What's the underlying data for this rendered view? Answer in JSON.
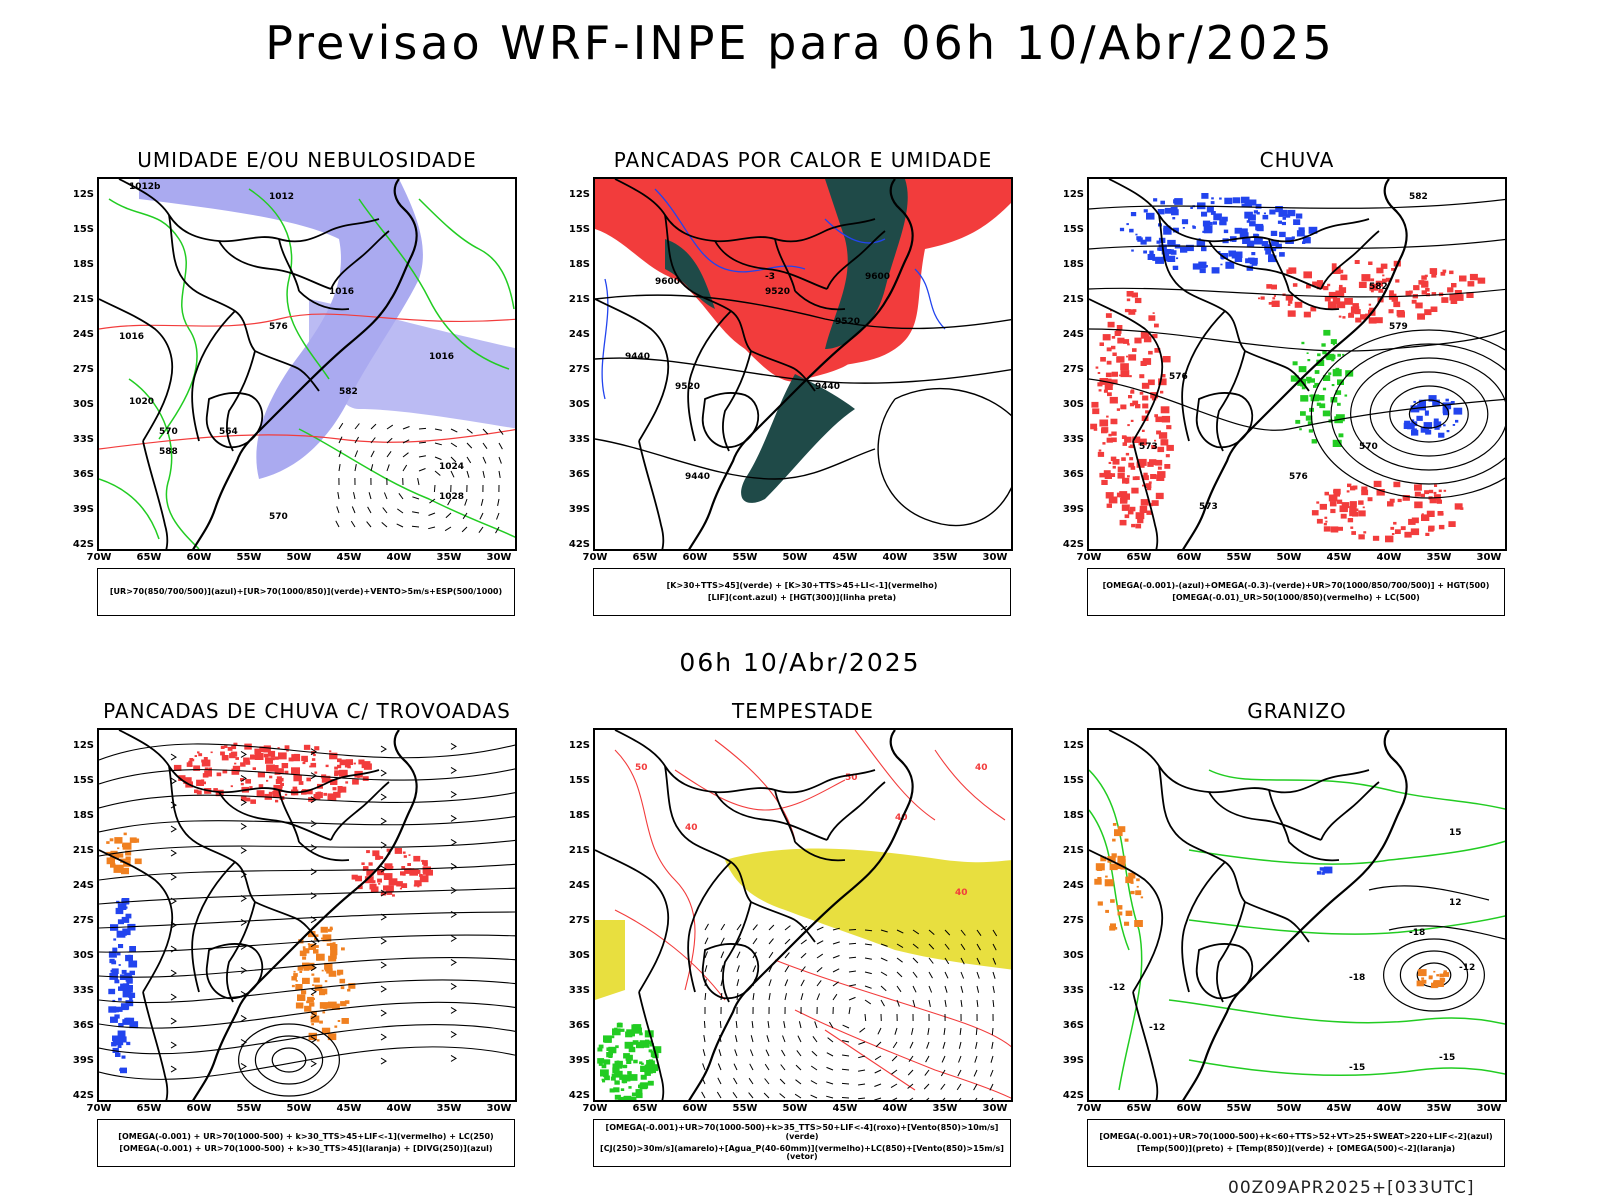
{
  "title": "Previsao WRF-INPE  para 06h 10/Abr/2025",
  "mid_title": "06h 10/Abr/2025",
  "footer": "00Z09APR2025+[033UTC]",
  "lat_labels": [
    "12S",
    "15S",
    "18S",
    "21S",
    "24S",
    "27S",
    "30S",
    "33S",
    "36S",
    "39S",
    "42S"
  ],
  "lon_labels": [
    "70W",
    "65W",
    "60W",
    "55W",
    "50W",
    "45W",
    "40W",
    "35W",
    "30W"
  ],
  "colors": {
    "blue_shade": "#aaaaf0",
    "green": "#22cc22",
    "red": "#f23c3c",
    "dark_teal": "#1f4a48",
    "blue": "#2244ee",
    "orange": "#f08020",
    "yellow": "#e6dc2a",
    "black": "#000000"
  },
  "panels": [
    {
      "id": "umidade",
      "title": "UMIDADE E/OU NEBULOSIDADE",
      "legend": [
        "[UR>70(850/700/500)](azul)+[UR>70(1000/850)](verde)+VENTO>5m/s+ESP(500/1000)"
      ],
      "contour_labels": [
        "1012b",
        "1012",
        "1016",
        "1016",
        "1020",
        "1024",
        "1028",
        "570",
        "564",
        "570",
        "582",
        "1016",
        "576",
        "588"
      ]
    },
    {
      "id": "pancadas",
      "title": "PANCADAS POR CALOR E UMIDADE",
      "legend": [
        "[K>30+TTS>45](verde) + [K>30+TTS>45+LI<-1](vermelho)",
        "[LIF](cont.azul) + [HGT(300)](linha preta)"
      ],
      "contour_labels": [
        "9600",
        "9520",
        "9440",
        "9520",
        "9600",
        "9520",
        "9440",
        "9440",
        "-3"
      ]
    },
    {
      "id": "chuva",
      "title": "CHUVA",
      "legend": [
        "[OMEGA(-0.001)-(azul)+OMEGA(-0.3)-(verde)+UR>70(1000/850/700/500)] + HGT(500)",
        "[OMEGA(-0.01)_UR>50(1000/850)(vermelho) + LC(500)"
      ],
      "contour_labels": [
        "582",
        "582",
        "579",
        "576",
        "573",
        "570",
        "576",
        "573"
      ]
    },
    {
      "id": "trovoadas",
      "title": "PANCADAS DE CHUVA C/ TROVOADAS",
      "legend": [
        "[OMEGA(-0.001) + UR>70(1000-500) + k>30_TTS>45+LIF<-1](vermelho) + LC(250)",
        "[OMEGA(-0.001) + UR>70(1000-500) + k>30_TTS>45](laranja) + [DIVG(250)](azul)"
      ],
      "contour_labels": []
    },
    {
      "id": "tempestade",
      "title": "TEMPESTADE",
      "legend": [
        "[OMEGA(-0.001)+UR>70(1000-500)+k>35_TTS>50+LIF<-4](roxo)+[Vento(850)>10m/s](verde)",
        "[CJ(250)>30m/s](amarelo)+[Agua_P(40-60mm)](vermelho)+LC(850)+[Vento(850)>15m/s](vetor)"
      ],
      "contour_labels": [
        "50",
        "40",
        "40",
        "40",
        "50",
        "40"
      ]
    },
    {
      "id": "granizo",
      "title": "GRANIZO",
      "legend": [
        "[OMEGA(-0.001)+UR>70(1000-500)+k<60+TTS>52+VT>25+SWEAT>220+LIF<-2](azul)",
        "[Temp(500)](preto) + [Temp(850)](verde) + [OMEGA(500)<-2](laranja)"
      ],
      "contour_labels": [
        "-12",
        "-15",
        "-18",
        "-18",
        "-12",
        "-15",
        "15",
        "12",
        "-12"
      ]
    }
  ]
}
